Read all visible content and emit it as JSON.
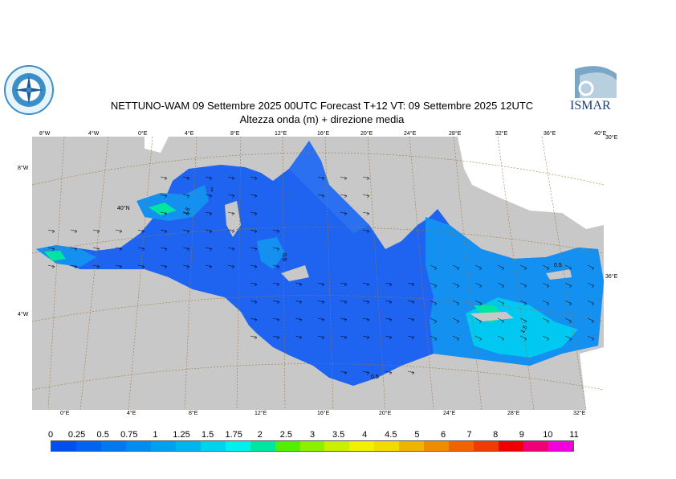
{
  "title_line1": "NETTUNO-WAM  09 Settembre 2025 00UTC Forecast T+12 VT: 09 Settembre 2025 12UTC",
  "title_line2": "Altezza onda (m) + direzione media",
  "logo_right_text": "ISMAR",
  "top_ticks": [
    "8°W",
    "4°W",
    "0°E",
    "4°E",
    "8°E",
    "12°E",
    "16°E",
    "20°E",
    "24°E",
    "28°E",
    "32°E",
    "36°E",
    "40°E"
  ],
  "bottom_ticks": [
    "0°E",
    "4°E",
    "8°E",
    "12°E",
    "16°E",
    "20°E",
    "24°E",
    "28°E",
    "32°E"
  ],
  "left_ticks": [
    "8°W",
    "4°W"
  ],
  "inner_labels": [
    "40°N",
    "30°E",
    "36°E"
  ],
  "contour_labels": [
    "1",
    "1.5",
    "0.5",
    "0.5",
    "1.5",
    "0.5"
  ],
  "legend": {
    "labels": [
      "0",
      "0.25",
      "0.5",
      "0.75",
      "1",
      "1.25",
      "1.5",
      "1.75",
      "2",
      "2.5",
      "3",
      "3.5",
      "4",
      "4.5",
      "5",
      "6",
      "7",
      "8",
      "9",
      "10",
      "11"
    ],
    "colors": [
      "#0050f0",
      "#0064f0",
      "#0078f0",
      "#008cf0",
      "#00a0f0",
      "#00b4f0",
      "#00d2f0",
      "#00f0f0",
      "#00e6a0",
      "#50f000",
      "#8cf000",
      "#c8f000",
      "#f0f000",
      "#f0dc00",
      "#f0b400",
      "#f08c00",
      "#f06400",
      "#f03c00",
      "#f00000",
      "#f00078",
      "#f000dc"
    ]
  },
  "map_colors": {
    "land": "#c8c8c8",
    "snow": "#ffffff",
    "sea_low": "#1e64f0",
    "sea_mid": "#1490f0",
    "sea_high": "#00d2f0",
    "grid": "#a07840"
  }
}
